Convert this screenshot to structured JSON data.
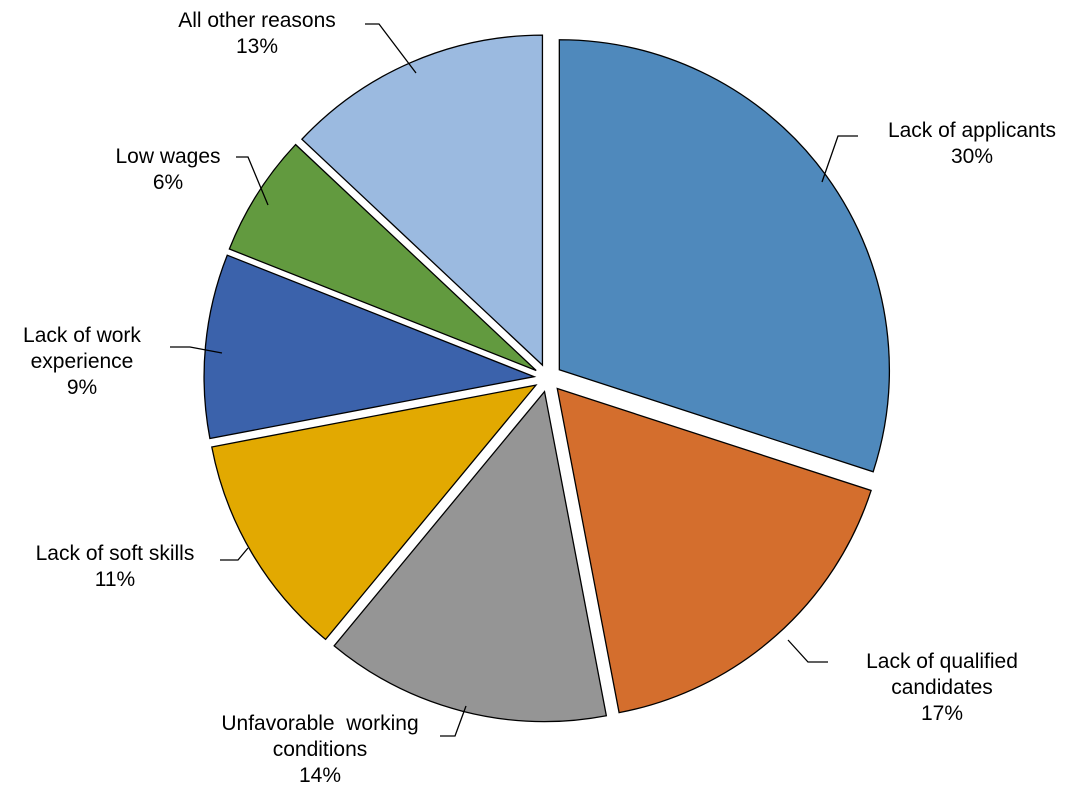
{
  "chart_data": {
    "type": "pie",
    "categories": [
      "Lack of applicants",
      "Lack of qualified candidates",
      "Unfavorable working conditions",
      "Lack of soft skills",
      "Lack of work experience",
      "Low wages",
      "All other reasons"
    ],
    "values": [
      30,
      17,
      14,
      11,
      9,
      6,
      13
    ],
    "labels": [
      {
        "lines": [
          "Lack of applicants"
        ],
        "pct": "30%"
      },
      {
        "lines": [
          "Lack of qualified",
          "candidates"
        ],
        "pct": "17%"
      },
      {
        "lines": [
          "Unfavorable  working",
          "conditions"
        ],
        "pct": "14%"
      },
      {
        "lines": [
          "Lack of soft skills"
        ],
        "pct": "11%"
      },
      {
        "lines": [
          "Lack of work",
          "experience"
        ],
        "pct": "9%"
      },
      {
        "lines": [
          "Low wages"
        ],
        "pct": "6%"
      },
      {
        "lines": [
          "All other reasons"
        ],
        "pct": "13%"
      }
    ],
    "colors": [
      "#4f89bc",
      "#d46e2d",
      "#959595",
      "#e2a901",
      "#3b62ab",
      "#629a3f",
      "#9bbae0"
    ],
    "exploded": true,
    "legend": "none"
  }
}
